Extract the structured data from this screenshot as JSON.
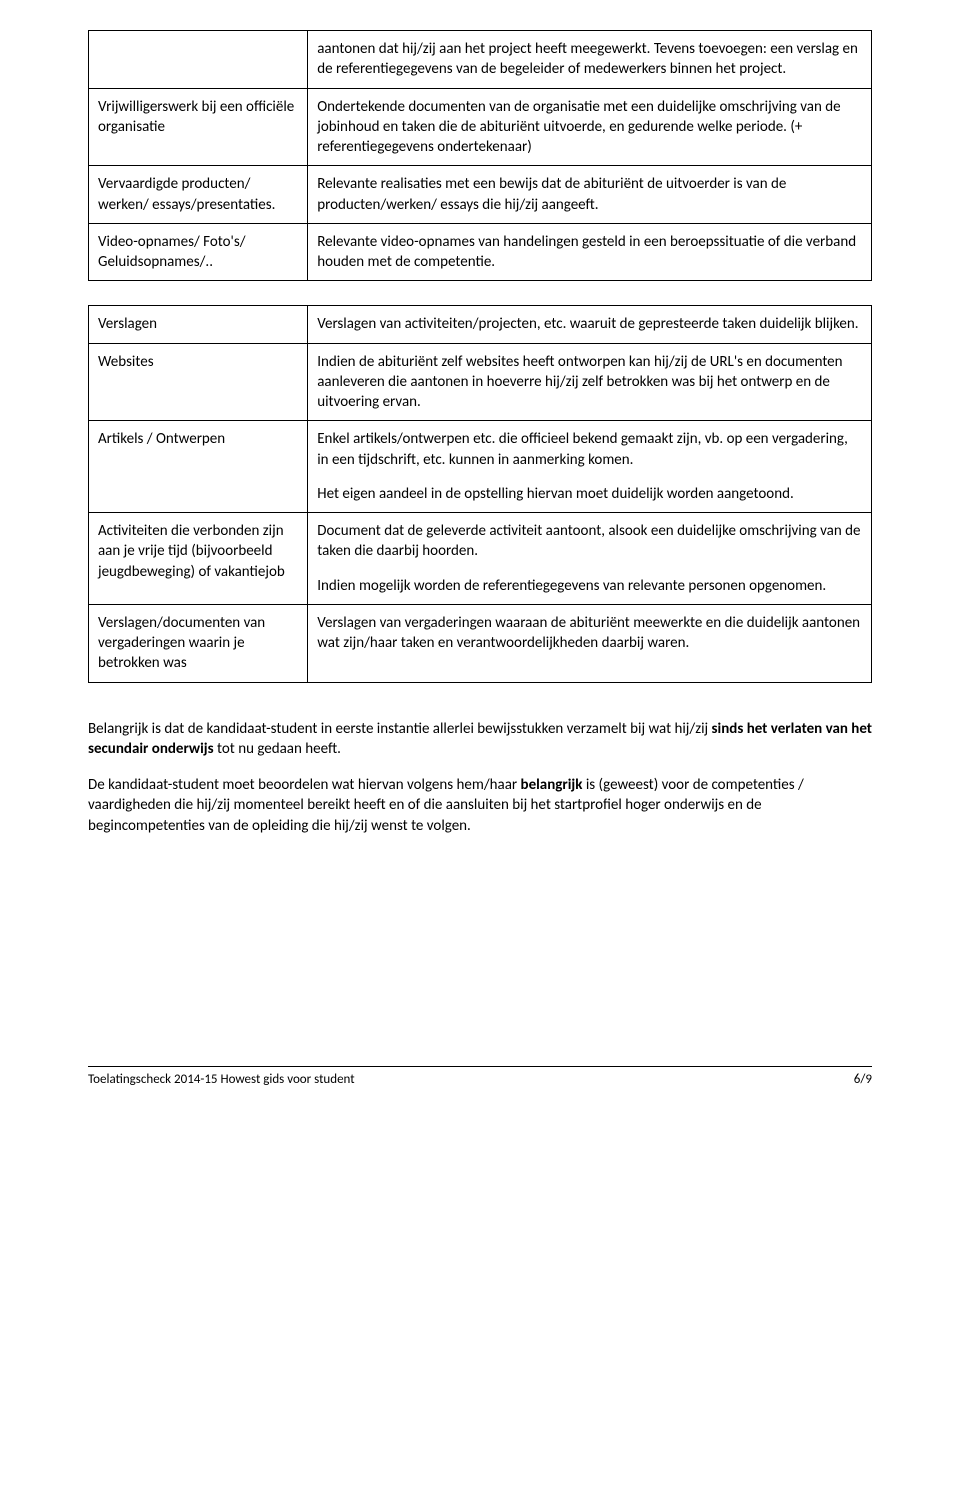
{
  "table1": {
    "rows": [
      {
        "left": [
          ""
        ],
        "right": [
          "aantonen dat hij/zij aan het project heeft meegewerkt. Tevens toevoegen: een verslag en de referentiegegevens van de begeleider of medewerkers binnen het project."
        ]
      },
      {
        "left": [
          "Vrijwilligerswerk bij een officiële organisatie"
        ],
        "right": [
          "Ondertekende documenten van de organisatie met een duidelijke omschrijving van de jobinhoud en taken die de abituriënt uitvoerde, en gedurende welke periode. (+ referentiegegevens ondertekenaar)"
        ]
      },
      {
        "left": [
          "Vervaardigde producten/ werken/ essays/presentaties."
        ],
        "right": [
          "Relevante realisaties met een bewijs dat de abituriënt de uitvoerder is van de producten/werken/ essays die hij/zij aangeeft."
        ]
      },
      {
        "left": [
          "Video-opnames/ Foto's/ Geluidsopnames/.."
        ],
        "right": [
          "Relevante video-opnames van handelingen gesteld in een beroepssituatie of die verband houden met de competentie."
        ]
      }
    ]
  },
  "table2": {
    "rows": [
      {
        "left": [
          "Verslagen"
        ],
        "right": [
          "Verslagen van activiteiten/projecten, etc. waaruit de gepresteerde taken duidelijk blijken."
        ]
      },
      {
        "left": [
          "Websites"
        ],
        "right": [
          "Indien de abituriënt zelf websites heeft ontworpen kan hij/zij de URL's en documenten aanleveren die aantonen in hoeverre hij/zij zelf betrokken was bij het ontwerp en de uitvoering ervan."
        ]
      },
      {
        "left": [
          "Artikels / Ontwerpen"
        ],
        "right": [
          "Enkel artikels/ontwerpen etc. die officieel bekend gemaakt zijn, vb. op een vergadering, in een tijdschrift, etc. kunnen in aanmerking komen.",
          "Het eigen aandeel in de opstelling hiervan moet duidelijk worden aangetoond."
        ]
      },
      {
        "left": [
          "Activiteiten die verbonden zijn aan je vrije tijd (bijvoorbeeld jeugdbeweging) of vakantiejob"
        ],
        "right": [
          "Document dat de geleverde activiteit aantoont, alsook een duidelijke omschrijving van de taken die daarbij hoorden.",
          "Indien mogelijk worden de referentiegegevens van relevante personen opgenomen."
        ]
      },
      {
        "left": [
          "Verslagen/documenten van vergaderingen waarin je betrokken was"
        ],
        "right": [
          "Verslagen van vergaderingen waaraan de abituriënt meewerkte en die duidelijk aantonen wat zijn/haar taken en verantwoordelijkheden daarbij waren."
        ]
      }
    ]
  },
  "body": {
    "p1_a": "Belangrijk is dat de kandidaat-student in eerste instantie allerlei bewijsstukken verzamelt bij wat hij/zij ",
    "p1_b": "sinds het verlaten van het secundair onderwijs",
    "p1_c": " tot nu gedaan heeft.",
    "p2_a": "De kandidaat-student moet beoordelen wat hiervan volgens hem/haar ",
    "p2_b": "belangrijk",
    "p2_c": " is (geweest) voor de competenties / vaardigheden die hij/zij momenteel bereikt heeft en of die aansluiten bij het startprofiel hoger onderwijs en de begincompetenties van de  opleiding die hij/zij wenst te volgen."
  },
  "footer": {
    "left": "Toelatingscheck 2014-15 Howest  gids voor student",
    "right": "6/9"
  }
}
